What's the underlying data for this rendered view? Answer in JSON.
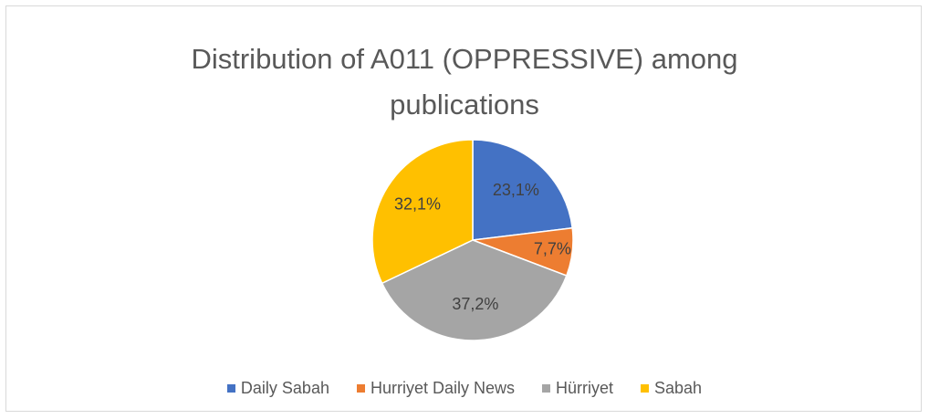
{
  "chart_data": {
    "type": "pie",
    "title": "Distribution of A011 (OPPRESSIVE) among publications",
    "categories": [
      "Daily Sabah",
      "Hurriyet Daily News",
      "Hürriyet",
      "Sabah"
    ],
    "values": [
      23.1,
      7.7,
      37.2,
      32.1
    ],
    "value_labels": [
      "23,1%",
      "7,7%",
      "37,2%",
      "32,1%"
    ],
    "colors": [
      "#4472c4",
      "#ed7d31",
      "#a5a5a5",
      "#ffc000"
    ],
    "legend": "bottom"
  }
}
